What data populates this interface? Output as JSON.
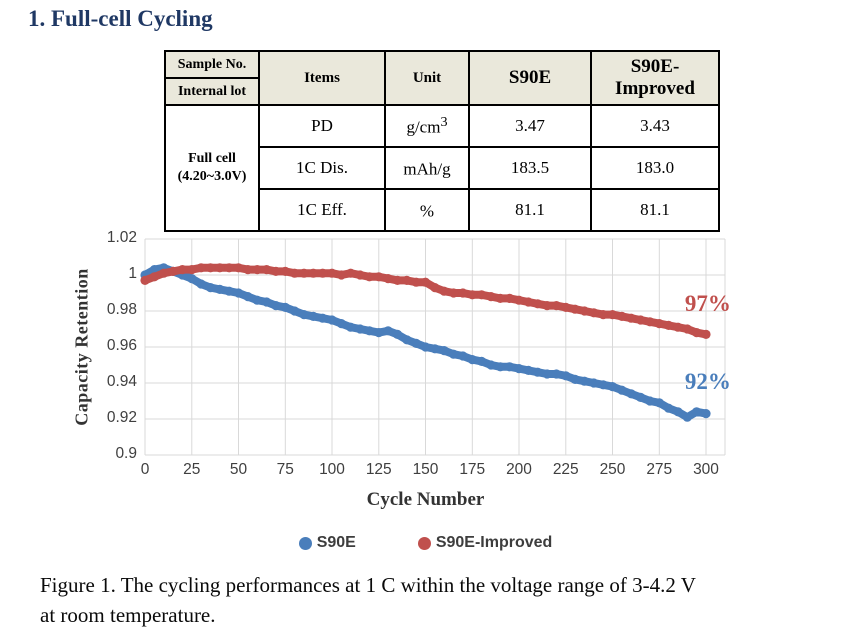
{
  "title": "1. Full-cell Cycling",
  "table": {
    "header": {
      "sample_no": "Sample No.",
      "internal_lot": "Internal lot",
      "items": "Items",
      "unit": "Unit",
      "col_s90e": "S90E",
      "col_s90e_improved": "S90E-Improved"
    },
    "row_group": {
      "line1": "Full cell",
      "line2": "(4.20~3.0V)"
    },
    "rows": [
      {
        "item": "PD",
        "unit": "g/cm",
        "unit_sup": "3",
        "s90e": "3.47",
        "s90e_improved": "3.43"
      },
      {
        "item": "1C Dis.",
        "unit": "mAh/g",
        "unit_sup": "",
        "s90e": "183.5",
        "s90e_improved": "183.0"
      },
      {
        "item": "1C Eff.",
        "unit": "%",
        "unit_sup": "",
        "s90e": "81.1",
        "s90e_improved": "81.1"
      }
    ]
  },
  "chart_data": {
    "type": "scatter",
    "title": "",
    "xlabel": "Cycle Number",
    "ylabel": "Capacity Retention",
    "xlim": [
      0,
      310
    ],
    "ylim": [
      0.9,
      1.02
    ],
    "grid": true,
    "grid_color": "#d9d9d9",
    "legend_position": "bottom",
    "x_ticks": [
      0,
      25,
      50,
      75,
      100,
      125,
      150,
      175,
      200,
      225,
      250,
      275,
      300
    ],
    "y_ticks": [
      1.02,
      1.0,
      0.98,
      0.96,
      0.94,
      0.92,
      0.9
    ],
    "y_tick_labels": [
      "1.02",
      "1",
      "0.98",
      "0.96",
      "0.94",
      "0.92",
      "0.9"
    ],
    "cycles": [
      0,
      5,
      10,
      15,
      20,
      25,
      30,
      35,
      40,
      45,
      50,
      55,
      60,
      65,
      70,
      75,
      80,
      85,
      90,
      95,
      100,
      105,
      110,
      115,
      120,
      125,
      130,
      135,
      140,
      145,
      150,
      155,
      160,
      165,
      170,
      175,
      180,
      185,
      190,
      195,
      200,
      205,
      210,
      215,
      220,
      225,
      230,
      235,
      240,
      245,
      250,
      255,
      260,
      265,
      270,
      275,
      280,
      285,
      290,
      295,
      300
    ],
    "series": [
      {
        "name": "S90E",
        "color": "#4a7ebb",
        "values": [
          1.0,
          1.003,
          1.004,
          1.002,
          1.0,
          0.998,
          0.995,
          0.993,
          0.992,
          0.991,
          0.99,
          0.988,
          0.986,
          0.985,
          0.983,
          0.982,
          0.98,
          0.978,
          0.977,
          0.976,
          0.975,
          0.973,
          0.971,
          0.97,
          0.969,
          0.968,
          0.969,
          0.967,
          0.964,
          0.962,
          0.96,
          0.959,
          0.958,
          0.956,
          0.955,
          0.953,
          0.952,
          0.95,
          0.949,
          0.949,
          0.948,
          0.947,
          0.946,
          0.945,
          0.945,
          0.944,
          0.942,
          0.941,
          0.94,
          0.939,
          0.938,
          0.936,
          0.934,
          0.932,
          0.93,
          0.929,
          0.926,
          0.924,
          0.921,
          0.924,
          0.923
        ]
      },
      {
        "name": "S90E-Improved",
        "color": "#c0504d",
        "values": [
          0.997,
          0.999,
          1.001,
          1.002,
          1.003,
          1.003,
          1.004,
          1.004,
          1.004,
          1.004,
          1.004,
          1.003,
          1.003,
          1.003,
          1.002,
          1.002,
          1.001,
          1.001,
          1.001,
          1.001,
          1.001,
          1.0,
          1.001,
          1.0,
          0.999,
          0.999,
          0.998,
          0.997,
          0.997,
          0.996,
          0.996,
          0.993,
          0.991,
          0.99,
          0.99,
          0.989,
          0.989,
          0.988,
          0.987,
          0.987,
          0.986,
          0.985,
          0.984,
          0.983,
          0.983,
          0.982,
          0.981,
          0.98,
          0.979,
          0.978,
          0.978,
          0.977,
          0.976,
          0.975,
          0.974,
          0.973,
          0.972,
          0.971,
          0.97,
          0.968,
          0.967
        ]
      }
    ],
    "annotations": [
      {
        "text": "97%",
        "color": "#c0504d",
        "x": 301,
        "y": 0.984
      },
      {
        "text": "92%",
        "color": "#4a7ebb",
        "x": 301,
        "y": 0.9405
      }
    ]
  },
  "figure_caption": {
    "line1": "Figure 1. The cycling performances at 1 C within the voltage range of 3-4.2 V",
    "line2": "at room temperature."
  }
}
